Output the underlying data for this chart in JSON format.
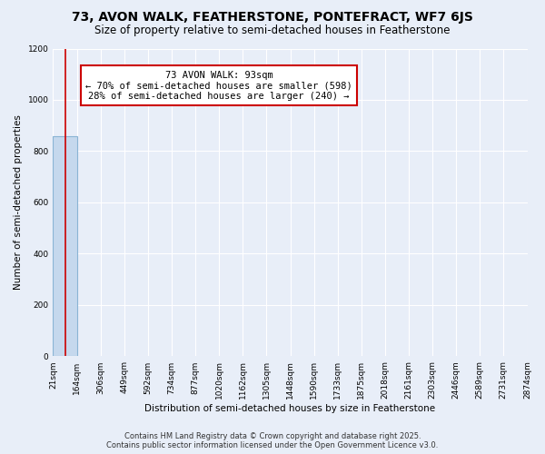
{
  "title": "73, AVON WALK, FEATHERSTONE, PONTEFRACT, WF7 6JS",
  "subtitle": "Size of property relative to semi-detached houses in Featherstone",
  "xlabel": "Distribution of semi-detached houses by size in Featherstone",
  "ylabel": "Number of semi-detached properties",
  "footer1": "Contains HM Land Registry data © Crown copyright and database right 2025.",
  "footer2": "Contains public sector information licensed under the Open Government Licence v3.0.",
  "annotation_title": "73 AVON WALK: 93sqm",
  "annotation_line1": "← 70% of semi-detached houses are smaller (598)",
  "annotation_line2": "28% of semi-detached houses are larger (240) →",
  "property_size": 93,
  "bin_edges": [
    21,
    164,
    306,
    449,
    592,
    734,
    877,
    1020,
    1162,
    1305,
    1448,
    1590,
    1733,
    1875,
    2018,
    2161,
    2303,
    2446,
    2589,
    2731,
    2874
  ],
  "bar_heights": [
    858,
    0,
    0,
    0,
    0,
    0,
    0,
    0,
    0,
    0,
    0,
    0,
    0,
    0,
    0,
    0,
    0,
    0,
    0,
    0
  ],
  "bar_color": "#c5d8ed",
  "bar_edge_color": "#8ab4d4",
  "property_line_color": "#cc0000",
  "annotation_box_color": "#cc0000",
  "background_color": "#e8eef8",
  "ylim": [
    0,
    1200
  ],
  "grid_color": "#ffffff",
  "title_fontsize": 10,
  "subtitle_fontsize": 8.5,
  "axis_label_fontsize": 7.5,
  "tick_fontsize": 6.5,
  "annotation_fontsize": 7.5,
  "footer_fontsize": 6.0
}
